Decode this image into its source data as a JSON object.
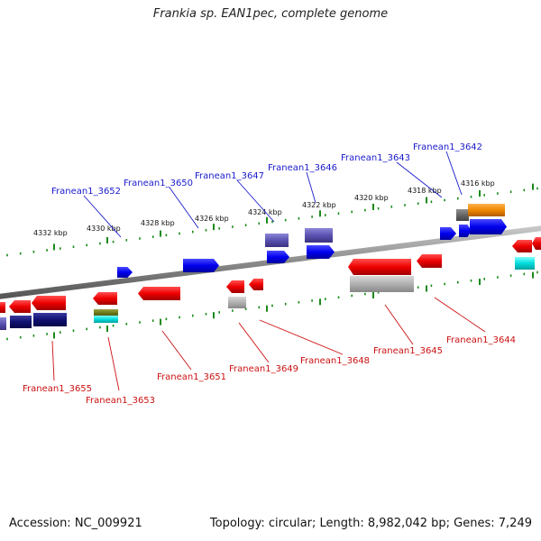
{
  "title": "Frankia sp. EAN1pec, complete genome",
  "footer": {
    "accession": "Accession: NC_009921",
    "topology": "Topology: circular; Length: 8,982,042 bp; Genes: 7,249"
  },
  "scale_labels": [
    "4316 kbp",
    "4318 kbp",
    "4320 kbp",
    "4322 kbp",
    "4324 kbp",
    "4326 kbp",
    "4328 kbp",
    "4330 kbp",
    "4332 kbp"
  ],
  "top_genes": [
    "Franean1_3642",
    "Franean1_3643",
    "Franean1_3646",
    "Franean1_3647",
    "Franean1_3650",
    "Franean1_3652"
  ],
  "bottom_genes": [
    "Franean1_3644",
    "Franean1_3645",
    "Franean1_3648",
    "Franean1_3649",
    "Franean1_3651",
    "Franean1_3653",
    "Franean1_3655"
  ],
  "colors": {
    "forward_strand": "#0000ee",
    "reverse_strand": "#ee0000",
    "backbone": "#888888",
    "ticks": "#1a8a1a",
    "top_label": "#1a1acc",
    "bottom_label": "#cc1111"
  }
}
